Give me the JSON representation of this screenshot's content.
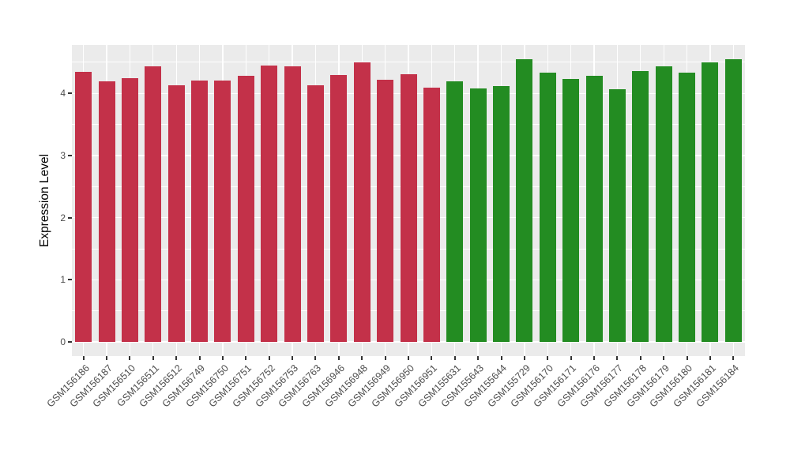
{
  "chart_data": {
    "type": "bar",
    "title": "",
    "xlabel": "",
    "ylabel": "Expression Level",
    "ylim": [
      0,
      4.77
    ],
    "yticks": [
      0,
      1,
      2,
      3,
      4
    ],
    "yticks_minor": [
      0.5,
      1.5,
      2.5,
      3.5,
      4.5
    ],
    "grid": "major and minor white gridlines on grey panel",
    "legend_position": "none",
    "categories": [
      "GSM156186",
      "GSM156187",
      "GSM156510",
      "GSM156511",
      "GSM156512",
      "GSM156749",
      "GSM156750",
      "GSM156751",
      "GSM156752",
      "GSM156753",
      "GSM156763",
      "GSM156946",
      "GSM156948",
      "GSM156949",
      "GSM156950",
      "GSM156951",
      "GSM155631",
      "GSM155643",
      "GSM155644",
      "GSM155729",
      "GSM156170",
      "GSM156171",
      "GSM156176",
      "GSM156177",
      "GSM156178",
      "GSM156179",
      "GSM156180",
      "GSM156181",
      "GSM156184"
    ],
    "values": [
      4.34,
      4.19,
      4.24,
      4.43,
      4.13,
      4.2,
      4.2,
      4.28,
      4.45,
      4.43,
      4.13,
      4.3,
      4.5,
      4.22,
      4.31,
      4.09,
      4.19,
      4.08,
      4.12,
      4.55,
      4.33,
      4.23,
      4.28,
      4.07,
      4.36,
      4.43,
      4.33,
      4.5,
      4.55
    ],
    "groups": [
      "group1",
      "group1",
      "group1",
      "group1",
      "group1",
      "group1",
      "group1",
      "group1",
      "group1",
      "group1",
      "group1",
      "group1",
      "group1",
      "group1",
      "group1",
      "group1",
      "group2",
      "group2",
      "group2",
      "group2",
      "group2",
      "group2",
      "group2",
      "group2",
      "group2",
      "group2",
      "group2",
      "group2",
      "group2"
    ],
    "group_colors": {
      "group1": "#C33149",
      "group2": "#238C22"
    }
  },
  "style": {
    "panel_background": "#EBEBEB",
    "gridline_color": "#FFFFFF",
    "tick_text_color": "#4D4D4D",
    "tick_mark_color": "#333333",
    "figure_background": "#FFFFFF"
  }
}
